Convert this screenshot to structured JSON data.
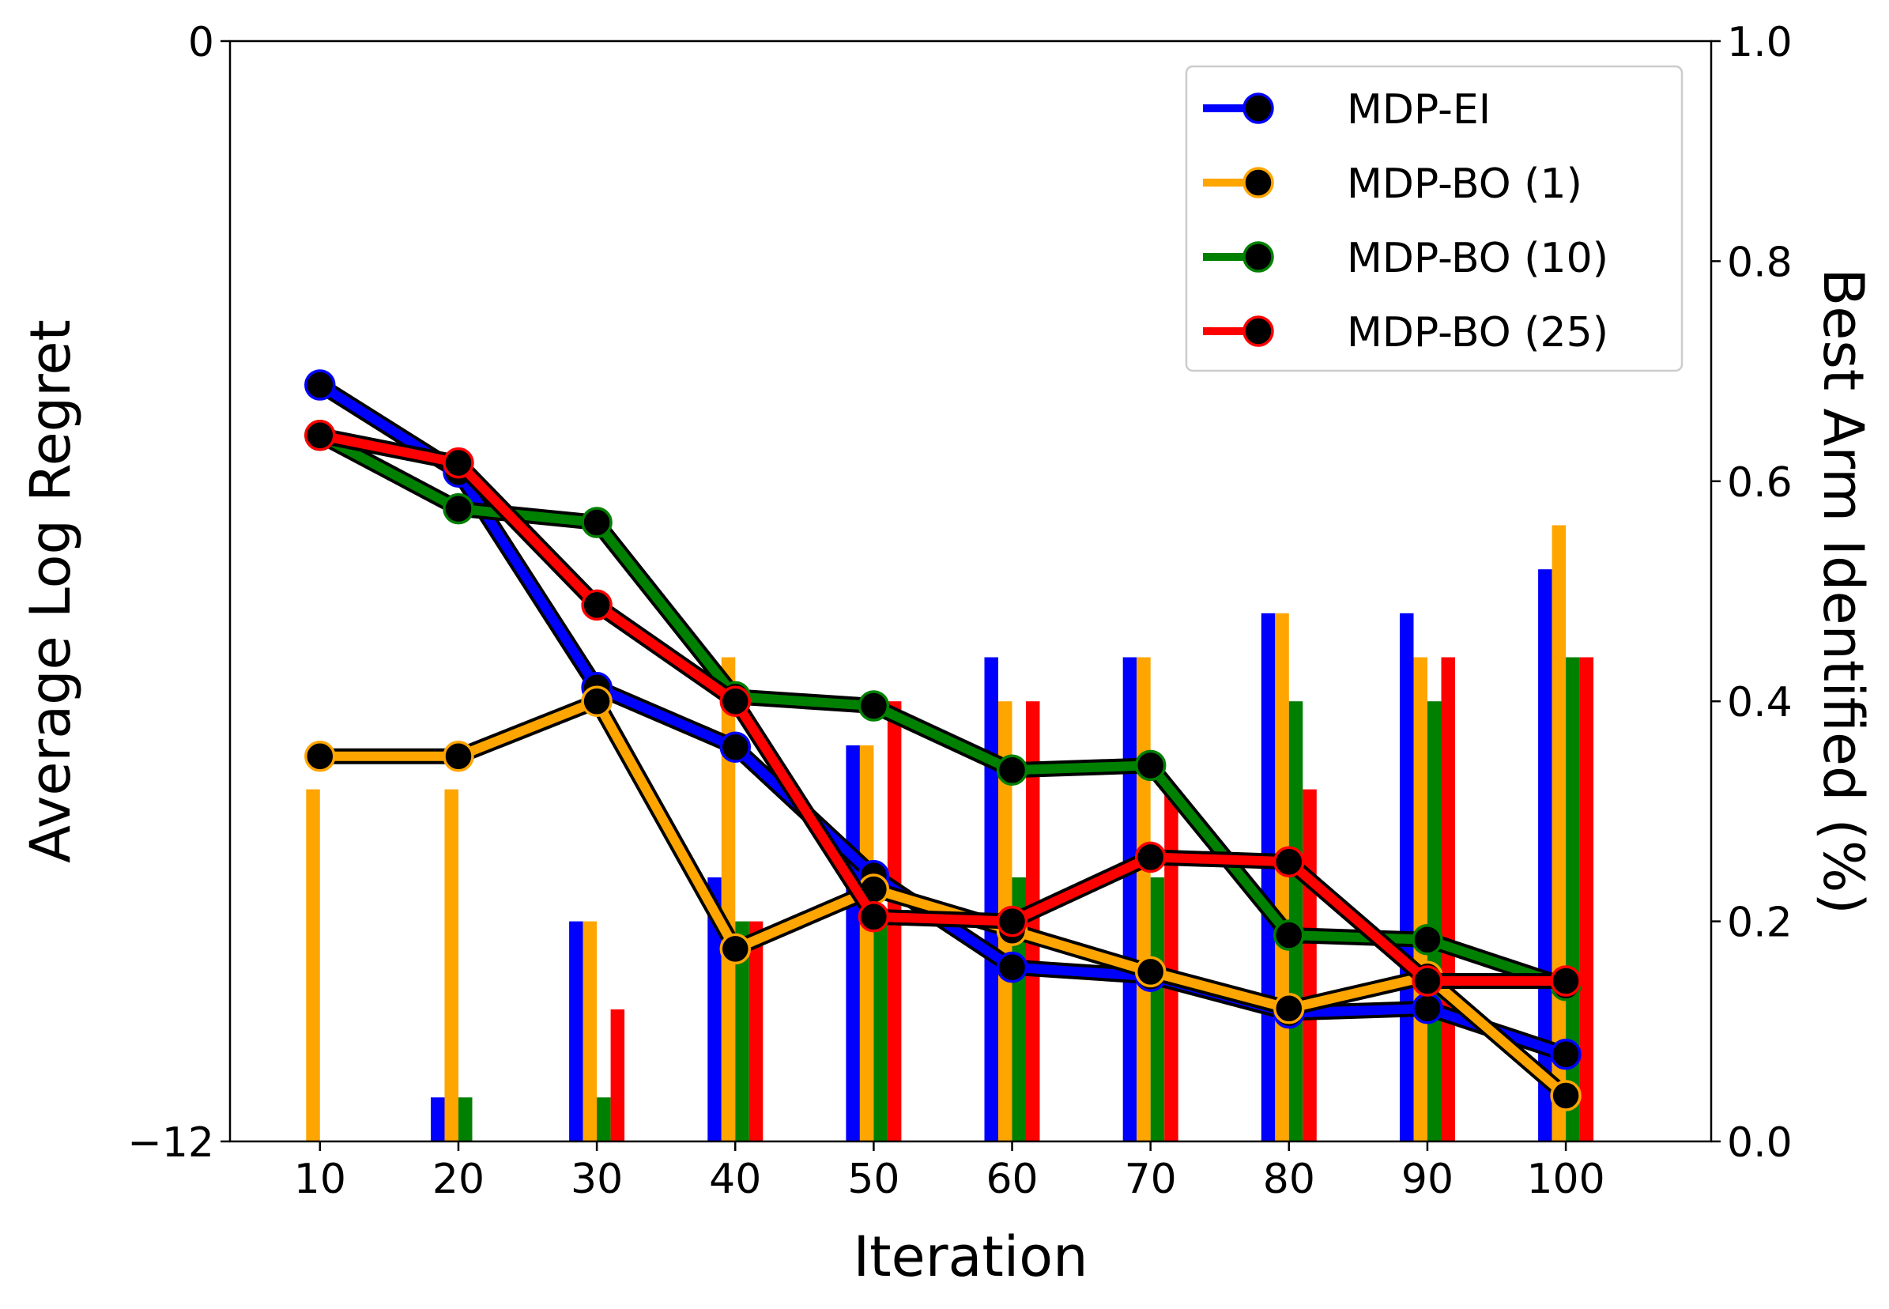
{
  "chart_data": {
    "type": "bar+line",
    "title": "",
    "xlabel": "Iteration",
    "ylabel_left": "Average Log Regret",
    "ylabel_right": "Best Arm Identified (%)",
    "x": [
      10,
      20,
      30,
      40,
      50,
      60,
      70,
      80,
      90,
      100
    ],
    "x_tick_labels": [
      "10",
      "20",
      "30",
      "40",
      "50",
      "60",
      "70",
      "80",
      "90",
      "100"
    ],
    "xlim": [
      3.5,
      110.5
    ],
    "ylim_left": [
      -12,
      0
    ],
    "ylim_right": [
      0.0,
      1.0
    ],
    "left_tick_values": [
      0,
      -12
    ],
    "left_tick_labels": [
      "0",
      "−12"
    ],
    "right_tick_values": [
      0.0,
      0.2,
      0.4,
      0.6,
      0.8,
      1.0
    ],
    "right_tick_labels": [
      "0.0",
      "0.2",
      "0.4",
      "0.6",
      "0.8",
      "1.0"
    ],
    "legend_position": "top-right",
    "series": [
      {
        "name": "MDP-EI",
        "color": "#0000ff",
        "regret": [
          -3.75,
          -4.7,
          -7.05,
          -7.7,
          -9.1,
          -10.1,
          -10.2,
          -10.6,
          -10.55,
          -11.05
        ],
        "best_arm": [
          0.0,
          0.04,
          0.2,
          0.24,
          0.36,
          0.44,
          0.44,
          0.48,
          0.48,
          0.52
        ]
      },
      {
        "name": "MDP-BO (1)",
        "color": "#ffa500",
        "regret": [
          -7.8,
          -7.8,
          -7.2,
          -9.9,
          -9.25,
          -9.7,
          -10.15,
          -10.55,
          -10.2,
          -11.5
        ],
        "best_arm": [
          0.32,
          0.32,
          0.2,
          0.44,
          0.36,
          0.4,
          0.44,
          0.48,
          0.44,
          0.56
        ]
      },
      {
        "name": "MDP-BO (10)",
        "color": "#008000",
        "regret": [
          -4.3,
          -5.1,
          -5.25,
          -7.15,
          -7.25,
          -7.95,
          -7.9,
          -9.75,
          -9.8,
          -10.3
        ],
        "best_arm": [
          0.0,
          0.04,
          0.04,
          0.2,
          0.2,
          0.24,
          0.24,
          0.4,
          0.4,
          0.44
        ]
      },
      {
        "name": "MDP-BO (25)",
        "color": "#ff0000",
        "regret": [
          -4.3,
          -4.6,
          -6.15,
          -7.2,
          -9.55,
          -9.6,
          -8.9,
          -8.95,
          -10.25,
          -10.25
        ],
        "best_arm": [
          0.0,
          0.0,
          0.12,
          0.2,
          0.4,
          0.4,
          0.32,
          0.32,
          0.44,
          0.44
        ]
      }
    ]
  }
}
